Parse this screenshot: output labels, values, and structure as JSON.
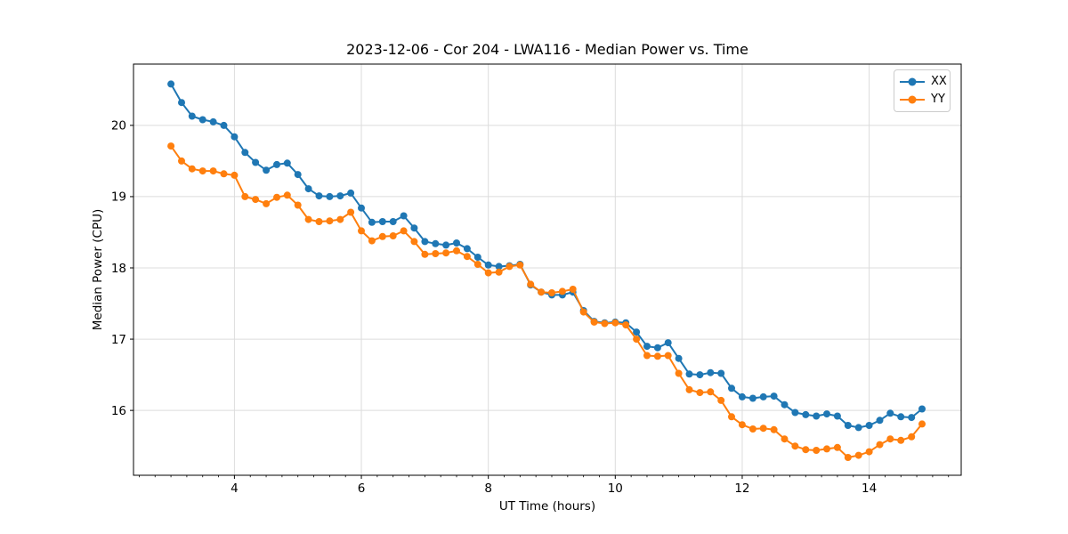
{
  "chart_data": {
    "type": "line",
    "title": "2023-12-06 - Cor 204 - LWA116 - Median Power vs. Time",
    "xlabel": "UT Time (hours)",
    "ylabel": "Median Power (CPU)",
    "xlim": [
      2.41,
      15.45
    ],
    "ylim": [
      15.09,
      20.86
    ],
    "x_ticks": [
      4,
      6,
      8,
      10,
      12,
      14
    ],
    "x_minor_tick_step": 0.25,
    "y_ticks": [
      16,
      17,
      18,
      19,
      20
    ],
    "grid": true,
    "grid_color": "#dcdcdc",
    "spine_color": "#000000",
    "legend_position": "upper right",
    "x": [
      3,
      3.167,
      3.333,
      3.5,
      3.667,
      3.833,
      4,
      4.167,
      4.333,
      4.5,
      4.667,
      4.833,
      5,
      5.167,
      5.333,
      5.5,
      5.667,
      5.833,
      6,
      6.167,
      6.333,
      6.5,
      6.667,
      6.833,
      7,
      7.167,
      7.333,
      7.5,
      7.667,
      7.833,
      8,
      8.167,
      8.333,
      8.5,
      8.667,
      8.833,
      9,
      9.167,
      9.333,
      9.5,
      9.667,
      9.833,
      10,
      10.167,
      10.333,
      10.5,
      10.667,
      10.833,
      11,
      11.167,
      11.333,
      11.5,
      11.667,
      11.833,
      12,
      12.167,
      12.333,
      12.5,
      12.667,
      12.833,
      13,
      13.167,
      13.333,
      13.5,
      13.667,
      13.833,
      14,
      14.167,
      14.333,
      14.5,
      14.667,
      14.833
    ],
    "series": [
      {
        "name": "XX",
        "color": "#1f77b4",
        "values": [
          20.58,
          20.32,
          20.13,
          20.08,
          20.05,
          20.0,
          19.84,
          19.62,
          19.48,
          19.37,
          19.45,
          19.47,
          19.31,
          19.11,
          19.01,
          19.0,
          19.01,
          19.05,
          18.84,
          18.64,
          18.65,
          18.65,
          18.73,
          18.56,
          18.37,
          18.34,
          18.32,
          18.35,
          18.27,
          18.15,
          18.04,
          18.02,
          18.03,
          18.05,
          17.76,
          17.66,
          17.62,
          17.62,
          17.66,
          17.4,
          17.25,
          17.23,
          17.24,
          17.23,
          17.1,
          16.9,
          16.88,
          16.95,
          16.73,
          16.51,
          16.5,
          16.53,
          16.52,
          16.31,
          16.19,
          16.17,
          16.19,
          16.2,
          16.08,
          15.97,
          15.94,
          15.92,
          15.95,
          15.92,
          15.79,
          15.76,
          15.79,
          15.86,
          15.96,
          15.91,
          15.9,
          16.02
        ]
      },
      {
        "name": "YY",
        "color": "#ff7f0e",
        "values": [
          19.71,
          19.5,
          19.39,
          19.36,
          19.36,
          19.32,
          19.3,
          19.0,
          18.96,
          18.9,
          18.99,
          19.02,
          18.88,
          18.68,
          18.65,
          18.66,
          18.68,
          18.78,
          18.52,
          18.38,
          18.44,
          18.45,
          18.52,
          18.37,
          18.19,
          18.2,
          18.21,
          18.24,
          18.16,
          18.05,
          17.93,
          17.94,
          18.02,
          18.04,
          17.77,
          17.66,
          17.65,
          17.67,
          17.7,
          17.38,
          17.24,
          17.22,
          17.23,
          17.2,
          17.0,
          16.77,
          16.76,
          16.77,
          16.52,
          16.29,
          16.25,
          16.26,
          16.14,
          15.91,
          15.8,
          15.74,
          15.75,
          15.73,
          15.6,
          15.5,
          15.45,
          15.44,
          15.46,
          15.48,
          15.34,
          15.37,
          15.42,
          15.52,
          15.6,
          15.58,
          15.63,
          15.81
        ]
      }
    ]
  }
}
